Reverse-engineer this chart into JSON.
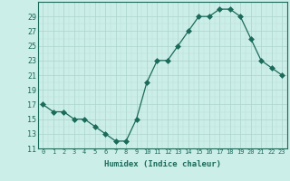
{
  "x": [
    0,
    1,
    2,
    3,
    4,
    5,
    6,
    7,
    8,
    9,
    10,
    11,
    12,
    13,
    14,
    15,
    16,
    17,
    18,
    19,
    20,
    21,
    22,
    23
  ],
  "y": [
    17,
    16,
    16,
    15,
    15,
    14,
    13,
    12,
    12,
    15,
    20,
    23,
    23,
    25,
    27,
    29,
    29,
    30,
    30,
    29,
    26,
    23,
    22,
    21
  ],
  "line_color": "#1a6b5a",
  "marker_color": "#1a6b5a",
  "bg_color": "#cceee8",
  "grid_major_color": "#aad4cc",
  "grid_minor_color": "#bbddd7",
  "title": "",
  "xlabel": "Humidex (Indice chaleur)",
  "ylabel": "",
  "ylim": [
    11,
    31
  ],
  "yticks": [
    11,
    13,
    15,
    17,
    19,
    21,
    23,
    25,
    27,
    29
  ],
  "xticks": [
    0,
    1,
    2,
    3,
    4,
    5,
    6,
    7,
    8,
    9,
    10,
    11,
    12,
    13,
    14,
    15,
    16,
    17,
    18,
    19,
    20,
    21,
    22,
    23
  ],
  "xlabel_fontsize": 6.5,
  "ytick_fontsize": 6,
  "xtick_fontsize": 5,
  "tick_color": "#1a6b5a",
  "linewidth": 0.9,
  "markersize": 3.0
}
